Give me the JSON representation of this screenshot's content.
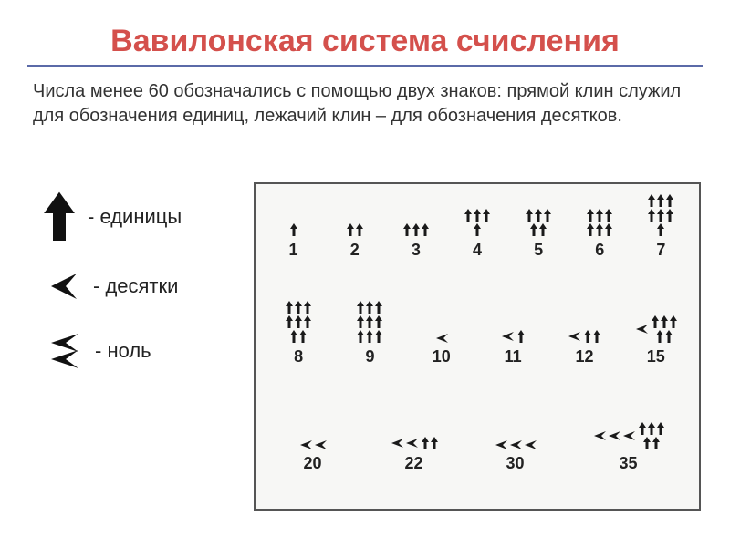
{
  "title": "Вавилонская система счисления",
  "description": "Числа менее 60 обозначались с помощью двух знаков: прямой клин служил для обозначения единиц, лежачий клин – для обозначения десятков.",
  "legend": {
    "units": "- единицы",
    "tens": "- десятки",
    "zero": "- ноль"
  },
  "colors": {
    "title": "#d4504c",
    "underline": "#5b6aa8",
    "text": "#222222",
    "glyph": "#1a1a1a",
    "box_border": "#555555",
    "box_bg": "#f7f7f5",
    "background": "#ffffff"
  },
  "glyph_style": {
    "unit_width": 10,
    "unit_height": 16,
    "ten_width": 16,
    "ten_height": 12
  },
  "rows": [
    {
      "cells": [
        {
          "label": "1",
          "layout": {
            "rows": [
              1
            ]
          }
        },
        {
          "label": "2",
          "layout": {
            "rows": [
              2
            ]
          }
        },
        {
          "label": "3",
          "layout": {
            "rows": [
              3
            ]
          }
        },
        {
          "label": "4",
          "layout": {
            "rows": [
              3,
              1
            ]
          }
        },
        {
          "label": "5",
          "layout": {
            "rows": [
              3,
              2
            ]
          }
        },
        {
          "label": "6",
          "layout": {
            "rows": [
              3,
              3
            ]
          }
        },
        {
          "label": "7",
          "layout": {
            "rows": [
              3,
              3,
              1
            ]
          }
        }
      ]
    },
    {
      "cells": [
        {
          "label": "8",
          "layout": {
            "rows": [
              3,
              3,
              2
            ]
          }
        },
        {
          "label": "9",
          "layout": {
            "rows": [
              3,
              3,
              3
            ]
          }
        },
        {
          "label": "10",
          "layout": {
            "tens": 1
          }
        },
        {
          "label": "11",
          "layout": {
            "tens": 1,
            "units_after": 1
          }
        },
        {
          "label": "12",
          "layout": {
            "tens": 1,
            "units_after": 2
          }
        },
        {
          "label": "15",
          "layout": {
            "tens": 1,
            "unit_rows_after": [
              3,
              2
            ]
          }
        }
      ]
    },
    {
      "cells": [
        {
          "label": "20",
          "layout": {
            "tens": 2
          }
        },
        {
          "label": "22",
          "layout": {
            "tens": 2,
            "units_after": 2
          }
        },
        {
          "label": "30",
          "layout": {
            "tens": 3
          }
        },
        {
          "label": "35",
          "layout": {
            "tens": 3,
            "unit_rows_after": [
              3,
              2
            ]
          }
        }
      ]
    }
  ]
}
